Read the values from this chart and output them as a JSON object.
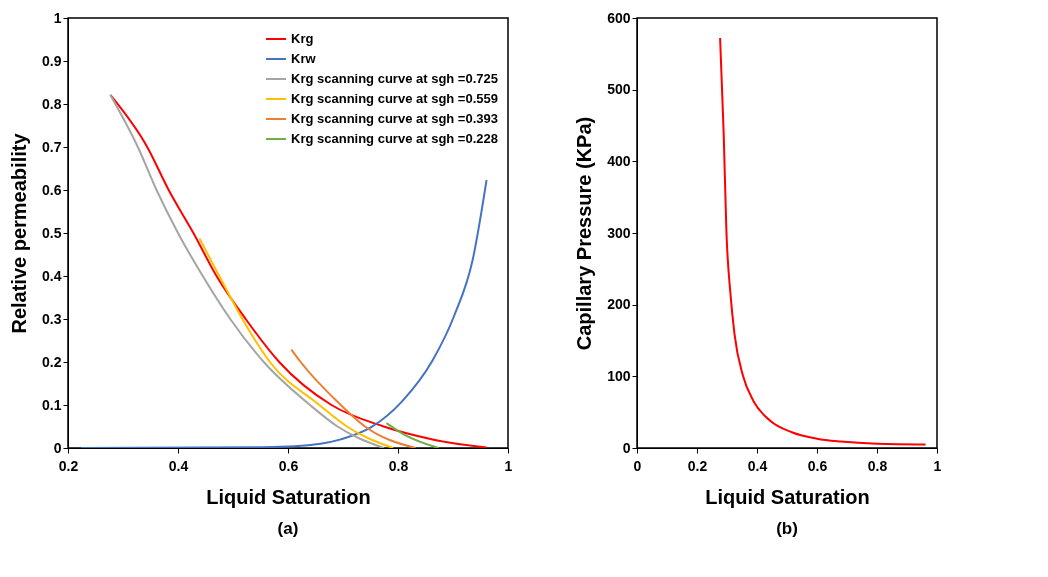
{
  "chart_data": [
    {
      "type": "line",
      "title": "(a)",
      "xlabel": "Liquid Saturation",
      "ylabel": "Relative permeability",
      "xlim": [
        0.2,
        1
      ],
      "ylim": [
        0,
        1
      ],
      "xticks": [
        0.2,
        0.4,
        0.6,
        0.8,
        1
      ],
      "yticks": [
        0,
        0.1,
        0.2,
        0.3,
        0.4,
        0.5,
        0.6,
        0.7,
        0.8,
        0.9,
        1
      ],
      "legend": "top right",
      "series": [
        {
          "name": "Krg",
          "color": "#ff0000",
          "x": [
            0.277,
            0.344,
            0.383,
            0.428,
            0.47,
            0.523,
            0.584,
            0.679,
            0.774,
            0.863,
            0.961
          ],
          "values": [
            0.821,
            0.7,
            0.6,
            0.5,
            0.4,
            0.3,
            0.2,
            0.1,
            0.05,
            0.02,
            0.001
          ]
        },
        {
          "name": "Krw",
          "color": "#4472c4",
          "x": [
            0.224,
            0.556,
            0.612,
            0.696,
            0.752,
            0.807,
            0.863,
            0.902,
            0.936,
            0.961
          ],
          "values": [
            0,
            0.002,
            0.004,
            0.02,
            0.049,
            0.108,
            0.204,
            0.307,
            0.439,
            0.623
          ]
        },
        {
          "name": "Krg scanning curve at sgh =0.725",
          "color": "#a5a5a5",
          "x": [
            0.277,
            0.327,
            0.361,
            0.4,
            0.445,
            0.495,
            0.556,
            0.64,
            0.69,
            0.774
          ],
          "values": [
            0.821,
            0.7,
            0.6,
            0.5,
            0.4,
            0.3,
            0.2,
            0.1,
            0.05,
            0
          ]
        },
        {
          "name": "Krg scanning curve at sgh =0.559",
          "color": "#ffc000",
          "x": [
            0.439,
            0.475,
            0.517,
            0.567,
            0.657,
            0.707,
            0.791
          ],
          "values": [
            0.487,
            0.4,
            0.3,
            0.2,
            0.1,
            0.05,
            0
          ]
        },
        {
          "name": "Krg scanning curve at sgh =0.393",
          "color": "#ed7d31",
          "x": [
            0.606,
            0.623,
            0.696,
            0.74,
            0.832
          ],
          "values": [
            0.229,
            0.2,
            0.1,
            0.05,
            0
          ]
        },
        {
          "name": "Krg scanning curve at sgh =0.228",
          "color": "#70ad47",
          "x": [
            0.779,
            0.813,
            0.874
          ],
          "values": [
            0.058,
            0.03,
            0
          ]
        }
      ]
    },
    {
      "type": "line",
      "title": "(b)",
      "xlabel": "Liquid Saturation",
      "ylabel": "Capillary Pressure (KPa)",
      "xlim": [
        0,
        1
      ],
      "ylim": [
        0,
        600
      ],
      "xticks": [
        0,
        0.2,
        0.4,
        0.6,
        0.8,
        1
      ],
      "yticks": [
        0,
        100,
        200,
        300,
        400,
        500,
        600
      ],
      "series": [
        {
          "color": "#ff0000",
          "x": [
            0.277,
            0.289,
            0.298,
            0.312,
            0.325,
            0.353,
            0.389,
            0.444,
            0.516,
            0.6,
            0.68,
            0.8,
            0.962
          ],
          "values": [
            572,
            438,
            303,
            213,
            159,
            101,
            65,
            38,
            22,
            13,
            9,
            6,
            5
          ]
        }
      ]
    }
  ]
}
